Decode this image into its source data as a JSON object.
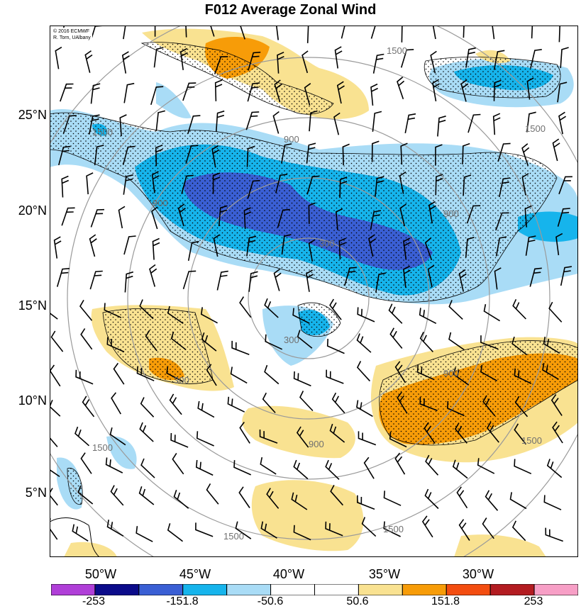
{
  "title": "F012 Average Zonal Wind",
  "credits": {
    "line1": "© 2016 ECMWF",
    "line2": "R. Torn, UAlbany"
  },
  "lat_labels": [
    "25°N",
    "20°N",
    "15°N",
    "10°N",
    "5°N"
  ],
  "lon_labels": [
    "50°W",
    "45°W",
    "40°W",
    "35°W",
    "30°W"
  ],
  "contour_labels": [
    "1500",
    "1500",
    "1500",
    "1500",
    "1500",
    "1500",
    "1500",
    "900",
    "900",
    "900",
    "900",
    "900",
    "300",
    "300",
    "300"
  ],
  "colorbar": {
    "colors": [
      "#b03fd8",
      "#0b0b8a",
      "#3a5fd4",
      "#16b4ec",
      "#a9dcf6",
      "#ffffff",
      "#ffffff",
      "#f9e291",
      "#f79c08",
      "#f34d10",
      "#b31c21",
      "#f79fc6"
    ],
    "labels": [
      "-253",
      "-151.8",
      "-50.6",
      "50.6",
      "151.8",
      "253"
    ]
  },
  "colors": {
    "light_blue": "#a9dcf6",
    "mid_blue": "#16b4ec",
    "dark_blue": "#3a5fd4",
    "light_yellow": "#f9e291",
    "orange": "#f79c08",
    "range_rings": "#9a9a9a"
  }
}
